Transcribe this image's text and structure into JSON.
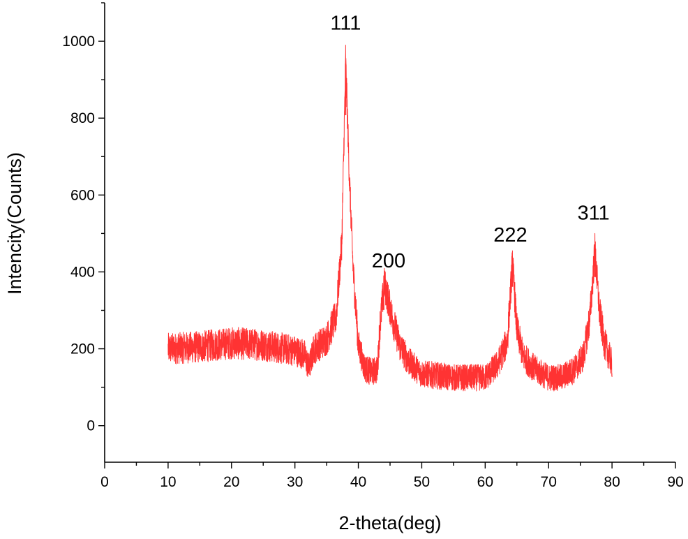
{
  "chart_data": {
    "type": "line",
    "title": "",
    "xlabel": "2-theta(deg)",
    "ylabel": "Intencity(Counts)",
    "xlim": [
      0,
      90
    ],
    "ylim": [
      -95,
      1100
    ],
    "x_ticks": [
      "0",
      "10",
      "20",
      "30",
      "40",
      "50",
      "60",
      "70",
      "80",
      "90"
    ],
    "y_ticks": [
      "0",
      "200",
      "400",
      "600",
      "800",
      "1000"
    ],
    "grid": false,
    "legend": "none",
    "color": "#ff3333",
    "x_range": [
      10,
      80
    ],
    "baseline_profile": [
      [
        10,
        200
      ],
      [
        15,
        205
      ],
      [
        20,
        215
      ],
      [
        25,
        210
      ],
      [
        30,
        195
      ],
      [
        31.5,
        185
      ],
      [
        32.2,
        150
      ],
      [
        33,
        200
      ],
      [
        35,
        225
      ],
      [
        36.5,
        285
      ],
      [
        37.4,
        480
      ],
      [
        38,
        950
      ],
      [
        38.6,
        640
      ],
      [
        39.2,
        400
      ],
      [
        40,
        210
      ],
      [
        41,
        150
      ],
      [
        42,
        140
      ],
      [
        43,
        145
      ],
      [
        43.4,
        260
      ],
      [
        44.1,
        370
      ],
      [
        44.8,
        320
      ],
      [
        45.6,
        265
      ],
      [
        46.5,
        210
      ],
      [
        48,
        165
      ],
      [
        50,
        135
      ],
      [
        55,
        125
      ],
      [
        60,
        125
      ],
      [
        62,
        160
      ],
      [
        63.5,
        220
      ],
      [
        64.3,
        425
      ],
      [
        65,
        250
      ],
      [
        66,
        180
      ],
      [
        68,
        145
      ],
      [
        70,
        125
      ],
      [
        72,
        125
      ],
      [
        74,
        145
      ],
      [
        75.5,
        180
      ],
      [
        76.5,
        280
      ],
      [
        77.3,
        455
      ],
      [
        78,
        300
      ],
      [
        78.8,
        215
      ],
      [
        80,
        160
      ]
    ],
    "noise_amplitude": 45,
    "peaks": [
      {
        "label": "111",
        "x": 38.0,
        "y": 990
      },
      {
        "label": "200",
        "x": 44.0,
        "y": 390
      },
      {
        "label": "222",
        "x": 64.3,
        "y": 455
      },
      {
        "label": "311",
        "x": 77.3,
        "y": 500
      }
    ]
  }
}
